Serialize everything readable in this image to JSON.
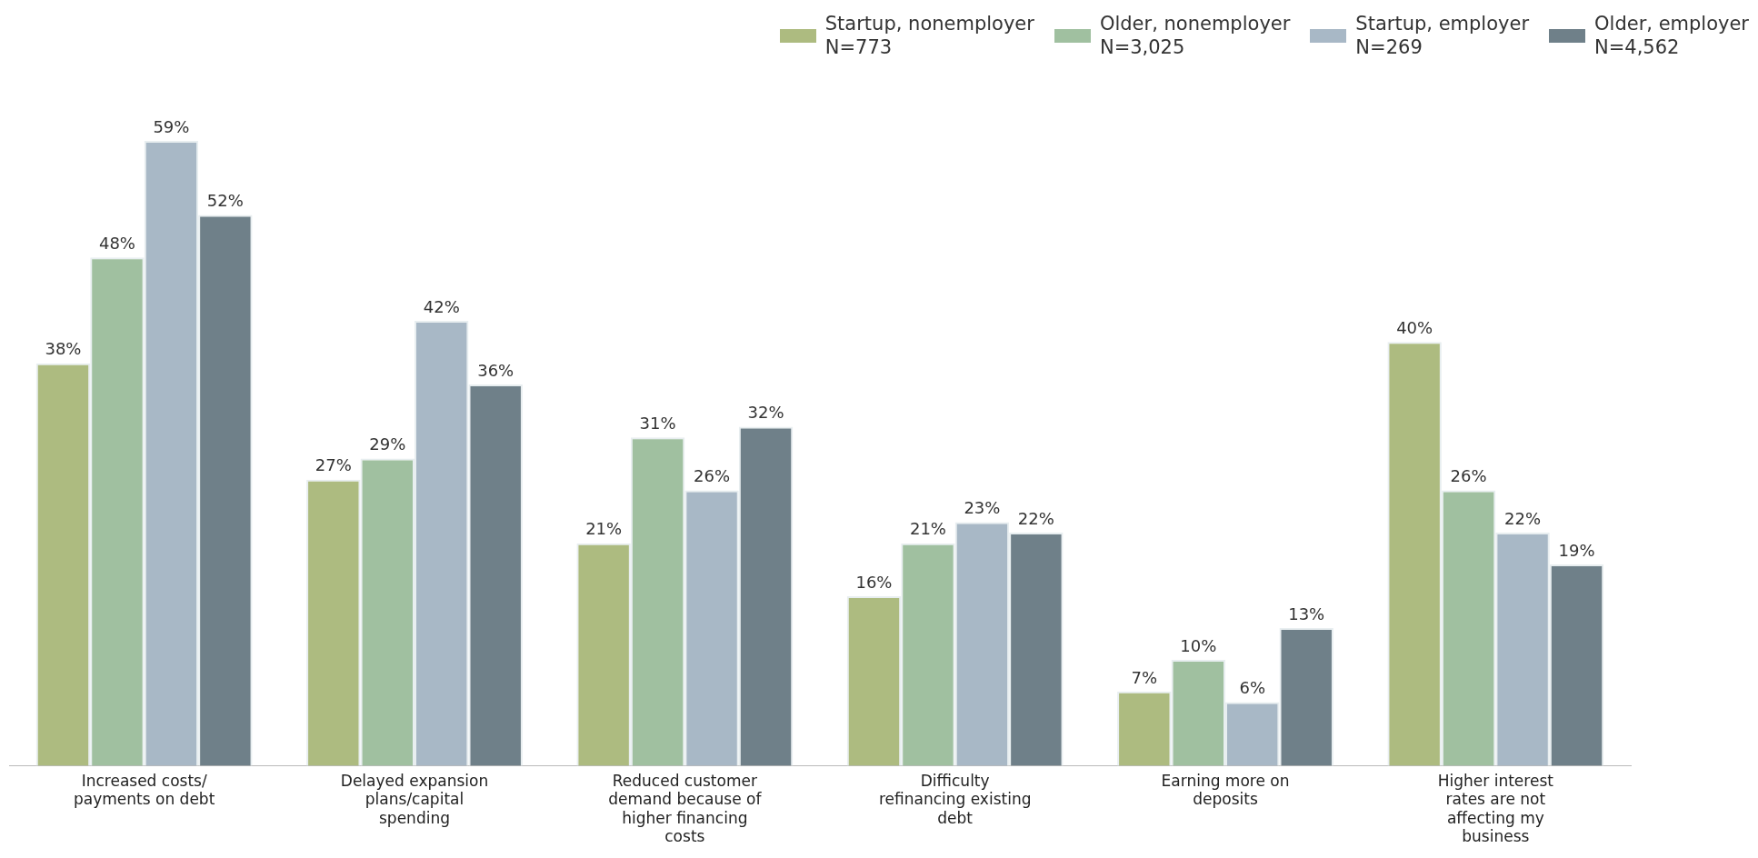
{
  "chart_data": {
    "type": "bar",
    "legend": "top right",
    "grid": false,
    "categories": [
      "Increased costs/ payments on debt",
      "Delayed expansion plans/capital spending",
      "Reduced customer demand because of higher financing costs",
      "Difficulty refinancing existing debt",
      "Earning more on deposits",
      "Higher interest rates are not affecting my business"
    ],
    "series": [
      {
        "name": "Startup, nonemployer\nN=773",
        "color": "#adbb80",
        "values": [
          38,
          27,
          21,
          16,
          7,
          40
        ],
        "value_labels": [
          "38%",
          "27%",
          "21%",
          "16%",
          "7%",
          "40%"
        ]
      },
      {
        "name": "Older, nonemployer\nN=3,025",
        "color": "#a0c0a0",
        "values": [
          48,
          29,
          31,
          21,
          10,
          26
        ],
        "value_labels": [
          "48%",
          "29%",
          "31%",
          "21%",
          "10%",
          "26%"
        ]
      },
      {
        "name": "Startup, employer\nN=269",
        "color": "#a8b8c6",
        "values": [
          59,
          42,
          26,
          23,
          6,
          22
        ],
        "value_labels": [
          "59%",
          "42%",
          "26%",
          "23%",
          "6%",
          "22%"
        ]
      },
      {
        "name": "Older, employer\nN=4,562",
        "color": "#6f8089",
        "values": [
          52,
          36,
          32,
          22,
          13,
          19
        ],
        "value_labels": [
          "52%",
          "36%",
          "32%",
          "22%",
          "13%",
          "19%"
        ]
      }
    ]
  }
}
